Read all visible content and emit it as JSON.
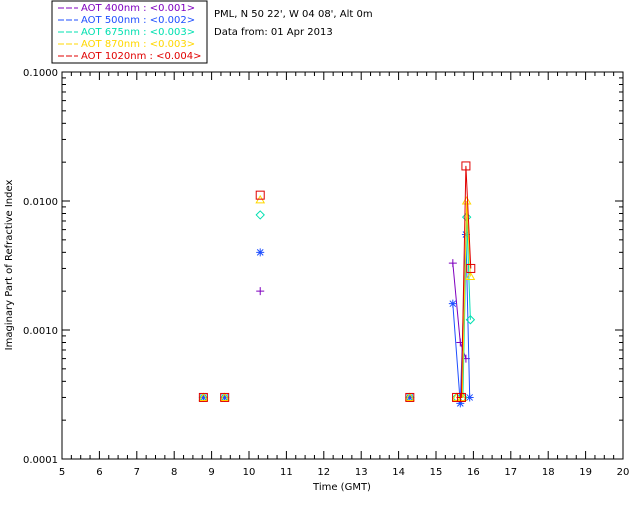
{
  "chart_data": {
    "type": "scatter",
    "title": "",
    "xlabel": "Time (GMT)",
    "ylabel": "Imaginary Part of Refractive Index",
    "xlim": [
      5,
      20
    ],
    "ylim": [
      0.0001,
      0.1
    ],
    "yscale": "log",
    "x_ticks": [
      "5",
      "6",
      "7",
      "8",
      "9",
      "10",
      "11",
      "12",
      "13",
      "14",
      "15",
      "16",
      "17",
      "18",
      "19",
      "20"
    ],
    "y_ticks": [
      "0.0001",
      "0.0010",
      "0.0100",
      "0.1000"
    ],
    "info": {
      "site": "PML, N 50 22', W 04 08', Alt 0m",
      "date": "Data from: 01 Apr 2013"
    },
    "series": [
      {
        "name": "AOT  400nm : <0.001>",
        "color": "#7f00bf",
        "marker": "plus",
        "points": [
          [
            8.78,
            0.0003
          ],
          [
            9.35,
            0.0003
          ],
          [
            10.3,
            0.002
          ],
          [
            14.3,
            0.0003
          ],
          [
            15.45,
            0.0033
          ],
          [
            15.65,
            0.0008
          ],
          [
            15.8,
            0.0006
          ]
        ]
      },
      {
        "name": "AOT  500nm : <0.002>",
        "color": "#1f4fff",
        "marker": "asterisk",
        "points": [
          [
            8.78,
            0.0003
          ],
          [
            9.35,
            0.0003
          ],
          [
            10.3,
            0.004
          ],
          [
            14.3,
            0.0003
          ],
          [
            15.45,
            0.0016
          ],
          [
            15.65,
            0.00027
          ],
          [
            15.8,
            0.0055
          ],
          [
            15.9,
            0.0003
          ]
        ]
      },
      {
        "name": "AOT  675nm : <0.003>",
        "color": "#00e0b0",
        "marker": "diamond",
        "points": [
          [
            8.78,
            0.0003
          ],
          [
            9.35,
            0.0003
          ],
          [
            10.3,
            0.0078
          ],
          [
            14.3,
            0.0003
          ],
          [
            15.55,
            0.0003
          ],
          [
            15.72,
            0.0003
          ],
          [
            15.82,
            0.0075
          ],
          [
            15.92,
            0.0012
          ]
        ]
      },
      {
        "name": "AOT  870nm : <0.003>",
        "color": "#ffd700",
        "marker": "triangle",
        "points": [
          [
            8.78,
            0.0003
          ],
          [
            9.35,
            0.0003
          ],
          [
            10.3,
            0.0102
          ],
          [
            14.3,
            0.0003
          ],
          [
            15.55,
            0.0003
          ],
          [
            15.7,
            0.0003
          ],
          [
            15.82,
            0.01
          ],
          [
            15.92,
            0.0026
          ]
        ]
      },
      {
        "name": "AOT 1020nm : <0.004>",
        "color": "#e00000",
        "marker": "square",
        "points": [
          [
            8.78,
            0.0003
          ],
          [
            9.35,
            0.0003
          ],
          [
            10.3,
            0.0111
          ],
          [
            14.3,
            0.0003
          ],
          [
            15.55,
            0.0003
          ],
          [
            15.68,
            0.0003
          ],
          [
            15.8,
            0.0187
          ],
          [
            15.93,
            0.003
          ]
        ]
      }
    ]
  }
}
